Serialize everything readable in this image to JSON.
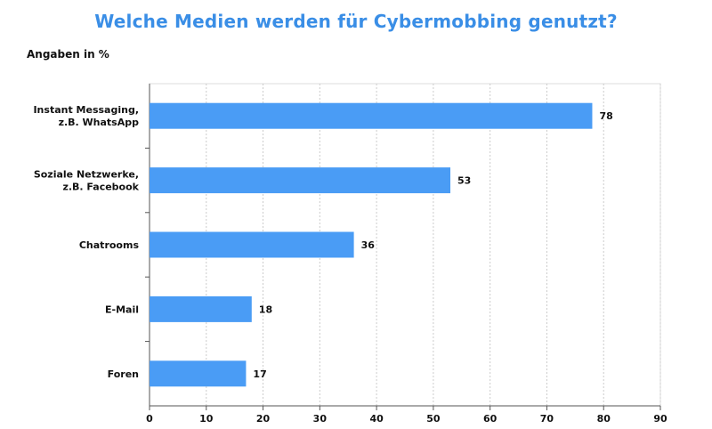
{
  "title": "Welche Medien werden für Cybermobbing genutzt?",
  "unit_label": "Angaben in %",
  "colors": {
    "title": "#3a8ee6",
    "bar": "#4a9cf5",
    "grid": "#cccccc",
    "axis": "#555555"
  },
  "chart_data": {
    "type": "bar",
    "orientation": "horizontal",
    "title": "Welche Medien werden für Cybermobbing genutzt?",
    "xlabel": "",
    "ylabel": "",
    "unit": "Angaben in %",
    "categories": [
      [
        "Instant Messaging,",
        "z.B. WhatsApp"
      ],
      [
        "Soziale Netzwerke,",
        "z.B. Facebook"
      ],
      [
        "Chatrooms"
      ],
      [
        "E-Mail"
      ],
      [
        "Foren"
      ]
    ],
    "values": [
      78,
      53,
      36,
      18,
      17
    ],
    "xlim": [
      0,
      90
    ],
    "xticks": [
      0,
      10,
      20,
      30,
      40,
      50,
      60,
      70,
      80,
      90
    ],
    "grid": true
  }
}
